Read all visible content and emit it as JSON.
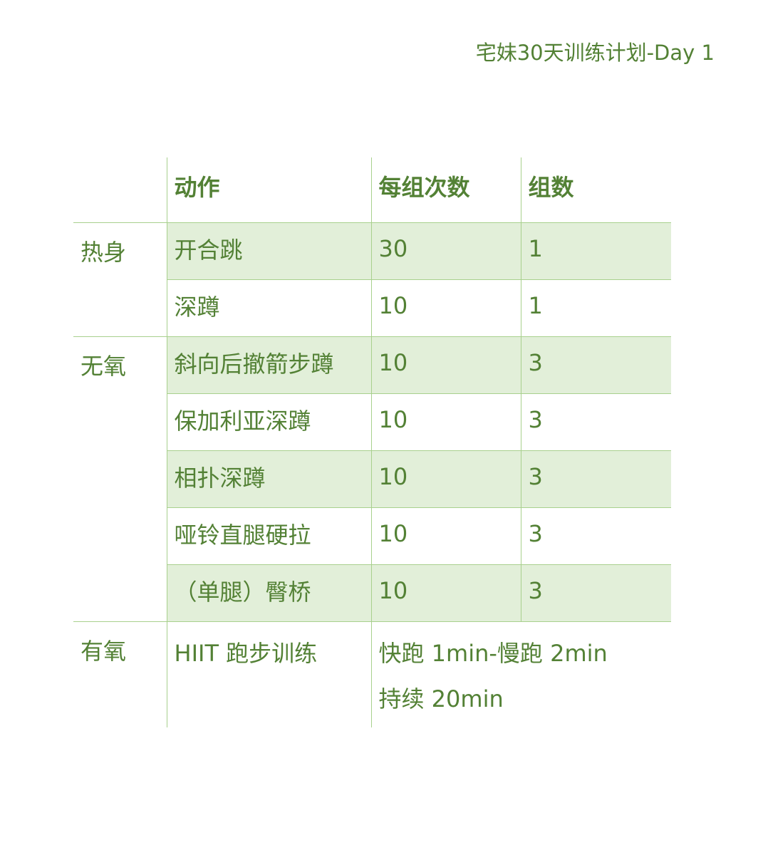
{
  "title": "宅妹30天训练计划-Day 1",
  "colors": {
    "text": "#538135",
    "border": "#a8d08d",
    "shade": "#e2efd9"
  },
  "table": {
    "headers": [
      "",
      "动作",
      "每组次数",
      "组数"
    ],
    "groups": [
      {
        "category": "热身",
        "rows": [
          {
            "action": "开合跳",
            "reps": "30",
            "sets": "1"
          },
          {
            "action": "深蹲",
            "reps": "10",
            "sets": "1"
          }
        ]
      },
      {
        "category": "无氧",
        "rows": [
          {
            "action": "斜向后撤箭步蹲",
            "reps": "10",
            "sets": "3"
          },
          {
            "action": "保加利亚深蹲",
            "reps": "10",
            "sets": "3"
          },
          {
            "action": "相扑深蹲",
            "reps": "10",
            "sets": "3"
          },
          {
            "action": "哑铃直腿硬拉",
            "reps": "10",
            "sets": "3"
          },
          {
            "action": "（单腿）臀桥",
            "reps": "10",
            "sets": "3"
          }
        ]
      }
    ],
    "cardio": {
      "category": "有氧",
      "action": "HIIT 跑步训练",
      "detail_line1": "快跑 1min-慢跑 2min",
      "detail_line2": "持续 20min"
    }
  }
}
